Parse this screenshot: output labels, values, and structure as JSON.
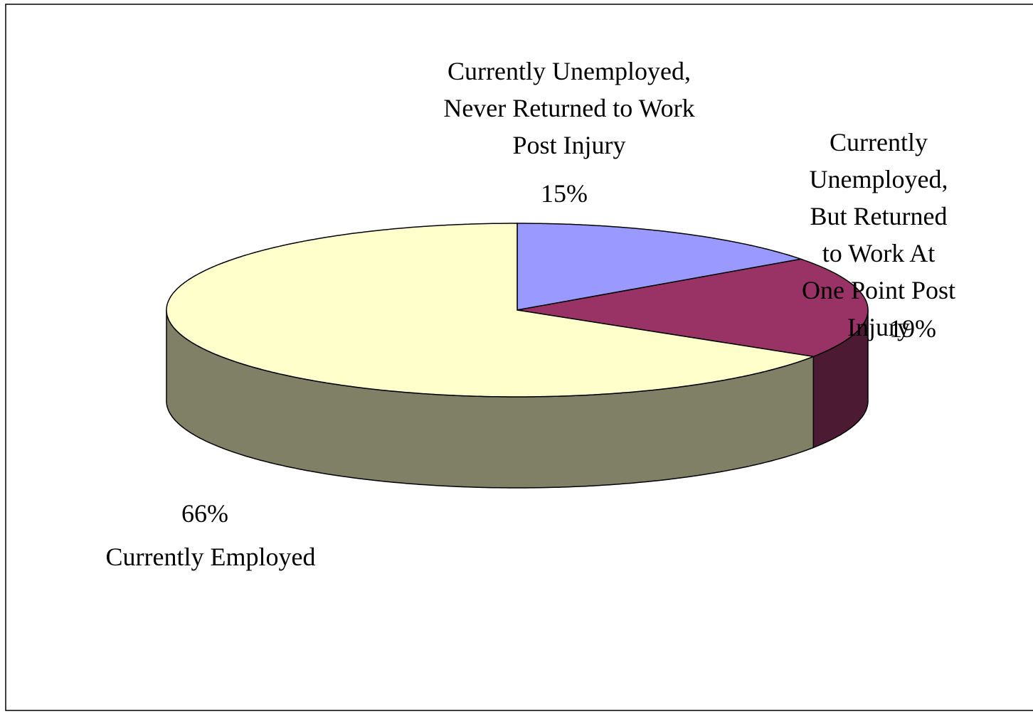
{
  "chart_data": {
    "type": "pie",
    "categories": [
      "Currently Unemployed,\nNever Returned to Work\nPost Injury",
      "Currently Unemployed,\nBut Returned to Work At\nOne Point Post Injury",
      "Currently Employed"
    ],
    "values": [
      15,
      19,
      66
    ],
    "value_labels": [
      "15%",
      "19%",
      "66%"
    ],
    "colors": [
      "#9999ff",
      "#993366",
      "#ffffcc"
    ],
    "three_d": true
  }
}
